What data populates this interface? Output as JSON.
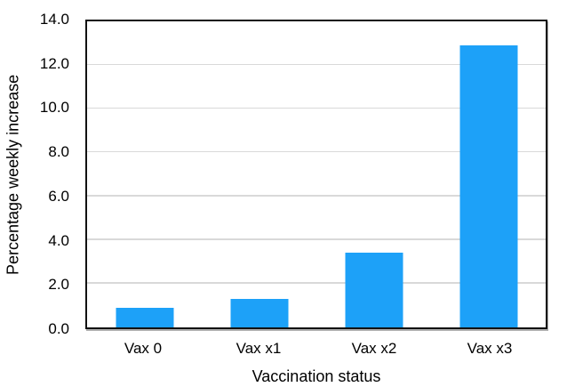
{
  "chart_data": {
    "type": "bar",
    "title": "",
    "categories": [
      "Vax 0",
      "Vax x1",
      "Vax x2",
      "Vax x3"
    ],
    "values": [
      0.9,
      1.3,
      3.4,
      12.9
    ],
    "xlabel": "Vaccination status",
    "ylabel": "Percentage weekly increase",
    "ylim": [
      0,
      14
    ],
    "ytick_step": 2,
    "ytick_decimals": 1,
    "grid": true,
    "legend": "none",
    "bar_color": "#1da1f8",
    "gridline_color": "#d9d9d9",
    "axis_frame_color": "#111111",
    "text_color": "#000000",
    "background_color": "#ffffff"
  }
}
